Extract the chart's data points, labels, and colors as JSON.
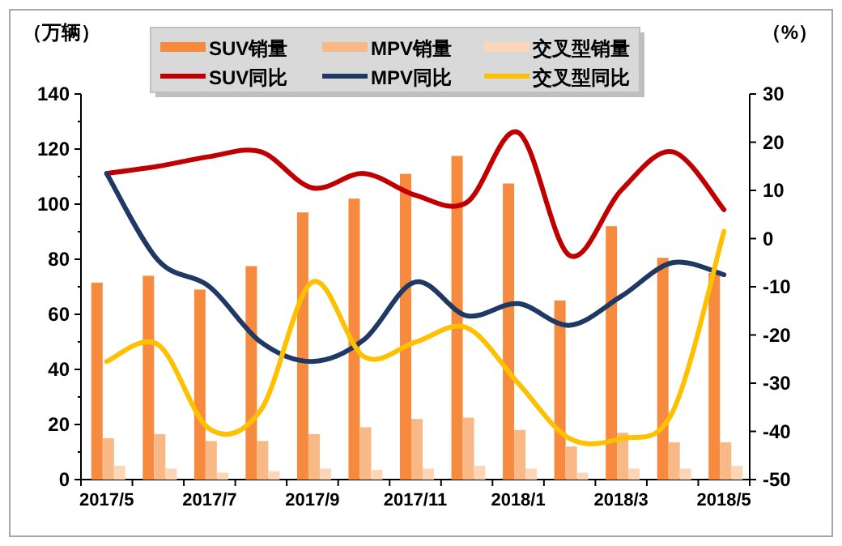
{
  "chart_data": {
    "type": "bar",
    "ylabel": "（万辆）",
    "y2label": "（%）",
    "categories": [
      "2017/5",
      null,
      "2017/7",
      null,
      "2017/9",
      null,
      "2017/11",
      null,
      "2018/1",
      null,
      "2018/3",
      null,
      "2018/5"
    ],
    "ylim": [
      0,
      140
    ],
    "yticks": [
      0,
      20,
      40,
      60,
      80,
      100,
      120,
      140
    ],
    "y2lim": [
      -50,
      30
    ],
    "y2ticks": [
      -50,
      -40,
      -30,
      -20,
      -10,
      0,
      10,
      20,
      30
    ],
    "legend": "top",
    "grid": false,
    "series": [
      {
        "name": "SUV销量",
        "color": "#f68b3f",
        "values": [
          71.5,
          74,
          69,
          77.5,
          97,
          102,
          111,
          117.5,
          107.5,
          65,
          92,
          80.5,
          75
        ]
      },
      {
        "name": "MPV销量",
        "color": "#f9b987",
        "values": [
          15,
          16.5,
          14,
          14,
          16.5,
          19,
          22,
          22.5,
          18,
          12,
          17,
          13.5,
          13.5
        ]
      },
      {
        "name": "交叉型销量",
        "color": "#fcd6b6",
        "values": [
          5,
          4,
          2.5,
          3,
          4,
          3.5,
          4,
          5,
          4,
          2.5,
          4,
          4,
          5
        ]
      },
      {
        "name": "SUV同比",
        "type": "line",
        "axis": "y2",
        "color": "#c00000",
        "values": [
          13.5,
          15,
          17,
          18,
          10.5,
          13.5,
          9,
          7.5,
          22,
          -3.5,
          10,
          18,
          6
        ]
      },
      {
        "name": "MPV同比",
        "type": "line",
        "axis": "y2",
        "color": "#1f3864",
        "values": [
          13.5,
          -4.5,
          -10,
          -21.5,
          -25.5,
          -21,
          -9,
          -16,
          -13.5,
          -18,
          -12,
          -5,
          -7.5
        ]
      },
      {
        "name": "交叉型同比",
        "type": "line",
        "axis": "y2",
        "color": "#ffc000",
        "values": [
          -25.5,
          -22,
          -39.5,
          -35.5,
          -9,
          -24.5,
          -21.5,
          -18.5,
          -30,
          -41.5,
          -41.5,
          -36,
          1.5
        ]
      }
    ]
  }
}
